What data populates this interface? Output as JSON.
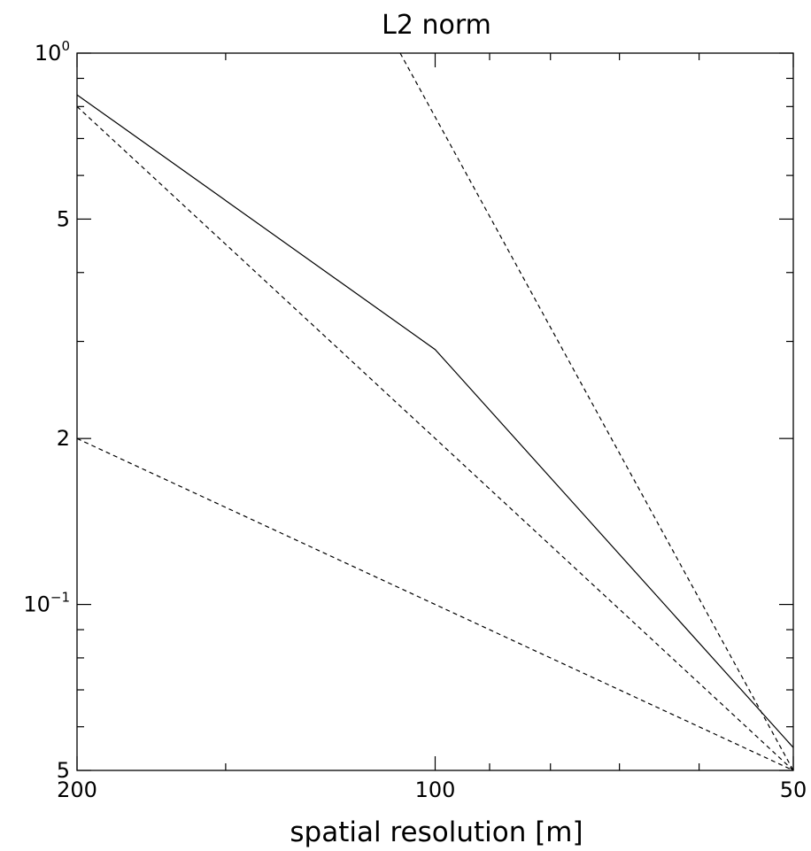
{
  "chart_data": {
    "type": "line",
    "title": "L2 norm",
    "xlabel": "spatial resolution [m]",
    "ylabel": "",
    "x_scale": "log",
    "y_scale": "log",
    "x_reversed": true,
    "xlim": [
      200,
      50
    ],
    "ylim": [
      0.05,
      1
    ],
    "grid": false,
    "legend": "none",
    "x_tick_labels": [
      {
        "value": 200,
        "label": "200"
      },
      {
        "value": 100,
        "label": "100"
      },
      {
        "value": 50,
        "label": "50"
      }
    ],
    "y_tick_labels": [
      {
        "value": 1,
        "base": "10",
        "exp": "0"
      },
      {
        "value": 0.5,
        "base": "5",
        "exp": ""
      },
      {
        "value": 0.2,
        "base": "2",
        "exp": ""
      },
      {
        "value": 0.1,
        "base": "10",
        "exp": "−1"
      },
      {
        "value": 0.05,
        "base": "5",
        "exp": ""
      }
    ],
    "y_minor_ticks": [
      0.9,
      0.8,
      0.7,
      0.6,
      0.4,
      0.3,
      0.09,
      0.08,
      0.07,
      0.06
    ],
    "x_minor_ticks": [
      150,
      90,
      80,
      70,
      60
    ],
    "series": [
      {
        "style": "solid",
        "x": [
          200,
          100,
          50
        ],
        "y": [
          0.84,
          0.29,
          0.055
        ]
      },
      {
        "style": "dashed",
        "x": [
          200,
          50
        ],
        "y": [
          0.8,
          0.05
        ]
      },
      {
        "style": "dashed",
        "x": [
          107,
          50
        ],
        "y": [
          1.0,
          0.05
        ]
      },
      {
        "style": "dashed",
        "x": [
          200,
          50
        ],
        "y": [
          0.2,
          0.05
        ]
      }
    ]
  }
}
